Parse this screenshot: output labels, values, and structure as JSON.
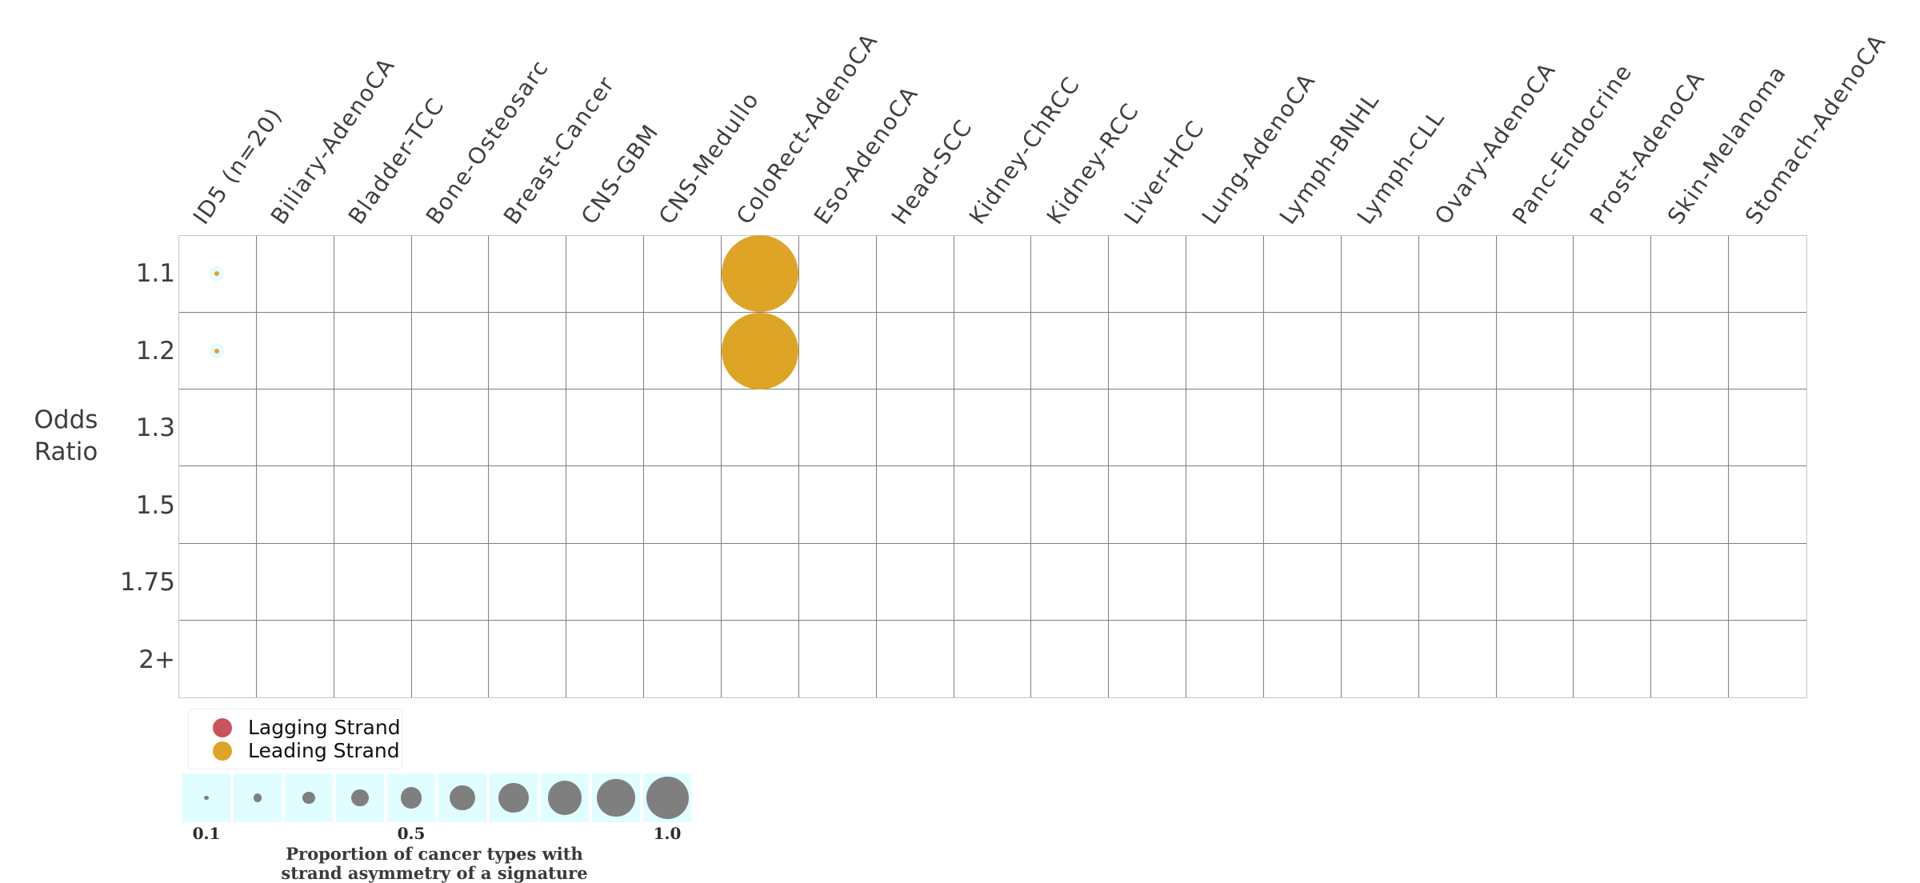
{
  "chart_data": {
    "type": "bubble-matrix",
    "title": "",
    "signature": "ID5",
    "columns": [
      "ID5 (n=20)",
      "Biliary-AdenoCA",
      "Bladder-TCC",
      "Bone-Osteosarc",
      "Breast-Cancer",
      "CNS-GBM",
      "CNS-Medullo",
      "ColoRect-AdenoCA",
      "Eso-AdenoCA",
      "Head-SCC",
      "Kidney-ChRCC",
      "Kidney-RCC",
      "Liver-HCC",
      "Lung-AdenoCA",
      "Lymph-BNHL",
      "Lymph-CLL",
      "Ovary-AdenoCA",
      "Panc-Endocrine",
      "Prost-AdenoCA",
      "Skin-Melanoma",
      "Stomach-AdenoCA"
    ],
    "rows": [
      "1.1",
      "1.2",
      "1.3",
      "1.5",
      "1.75",
      "2+"
    ],
    "ylabel": "Odds Ratio",
    "ylabel_lines": [
      "Odds",
      "Ratio"
    ],
    "points": [
      {
        "column": "ID5 (n=20)",
        "row": "1.1",
        "strand": "Leading Strand",
        "proportion": 0.1
      },
      {
        "column": "ID5 (n=20)",
        "row": "1.2",
        "strand": "Leading Strand",
        "proportion": 0.1
      },
      {
        "column": "ColoRect-AdenoCA",
        "row": "1.1",
        "strand": "Leading Strand",
        "proportion": 1.0
      },
      {
        "column": "ColoRect-AdenoCA",
        "row": "1.2",
        "strand": "Leading Strand",
        "proportion": 1.0
      }
    ],
    "strand_legend": [
      {
        "label": "Lagging Strand",
        "color": "#c9545c"
      },
      {
        "label": "Leading Strand",
        "color": "#dea425"
      }
    ],
    "size_legend": {
      "values": [
        0.1,
        0.2,
        0.3,
        0.4,
        0.5,
        0.6,
        0.7,
        0.8,
        0.9,
        1.0
      ],
      "tick_labels": [
        {
          "value": 0.1,
          "label": "0.1"
        },
        {
          "value": 0.5,
          "label": "0.5"
        },
        {
          "value": 1.0,
          "label": "1.0"
        }
      ],
      "caption_lines": [
        "Proportion of cancer types with",
        "strand asymmetry of a signature"
      ],
      "circle_color": "#7f7f7f",
      "background": "#e0feff"
    },
    "colors": {
      "leading": "#dea425",
      "lagging": "#c9545c",
      "grid_line": "#7d7d7d",
      "grid_border": "#c6c6c6",
      "text": "#3d3d3d"
    },
    "layout_hints": {
      "legend_position": "bottom-left",
      "grid": "on",
      "column_labels_rotated": true
    }
  }
}
